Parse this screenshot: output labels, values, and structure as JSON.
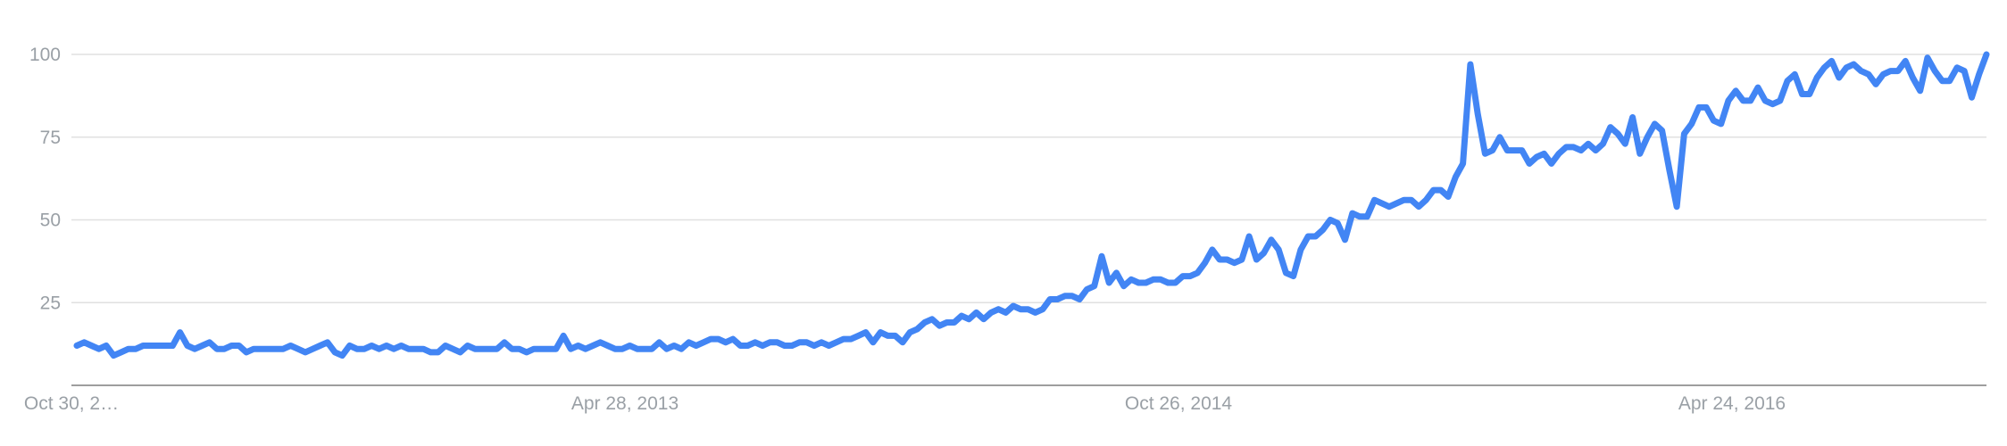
{
  "chart_data": {
    "type": "line",
    "title": "",
    "xlabel": "",
    "ylabel": "",
    "ylim": [
      0,
      100
    ],
    "grid": true,
    "legend": "none",
    "y_ticks": [
      "25",
      "50",
      "75",
      "100"
    ],
    "x_tick_labels": [
      "Oct 30, 2…",
      "Apr 28, 2013",
      "Oct 26, 2014",
      "Apr 24, 2016"
    ],
    "x_start": "2011-10-30",
    "x_end": "2016-12-31",
    "x_tick_dates": [
      "2011-10-30",
      "2013-04-28",
      "2014-10-26",
      "2016-04-24"
    ],
    "series": [
      {
        "color": "#4285f4",
        "values": [
          12,
          13,
          12,
          11,
          12,
          9,
          10,
          11,
          11,
          12,
          12,
          12,
          12,
          12,
          16,
          12,
          11,
          12,
          13,
          11,
          11,
          12,
          12,
          10,
          11,
          11,
          11,
          11,
          11,
          12,
          11,
          10,
          11,
          12,
          13,
          10,
          9,
          12,
          11,
          11,
          12,
          11,
          12,
          11,
          12,
          11,
          11,
          11,
          10,
          10,
          12,
          11,
          10,
          12,
          11,
          11,
          11,
          11,
          13,
          11,
          11,
          10,
          11,
          11,
          11,
          11,
          15,
          11,
          12,
          11,
          12,
          13,
          12,
          11,
          11,
          12,
          11,
          11,
          11,
          13,
          11,
          12,
          11,
          13,
          12,
          13,
          14,
          14,
          13,
          14,
          12,
          12,
          13,
          12,
          13,
          13,
          12,
          12,
          13,
          13,
          12,
          13,
          12,
          13,
          14,
          14,
          15,
          16,
          13,
          16,
          15,
          15,
          13,
          16,
          17,
          19,
          20,
          18,
          19,
          19,
          21,
          20,
          22,
          20,
          22,
          23,
          22,
          24,
          23,
          23,
          22,
          23,
          26,
          26,
          27,
          27,
          26,
          29,
          30,
          39,
          31,
          34,
          30,
          32,
          31,
          31,
          32,
          32,
          31,
          31,
          33,
          33,
          34,
          37,
          41,
          38,
          38,
          37,
          38,
          45,
          38,
          40,
          44,
          41,
          34,
          33,
          41,
          45,
          45,
          47,
          50,
          49,
          44,
          52,
          51,
          51,
          56,
          55,
          54,
          55,
          56,
          56,
          54,
          56,
          59,
          59,
          57,
          63,
          67,
          97,
          82,
          70,
          71,
          75,
          71,
          71,
          71,
          67,
          69,
          70,
          67,
          70,
          72,
          72,
          71,
          73,
          71,
          73,
          78,
          76,
          73,
          81,
          70,
          75,
          79,
          77,
          65,
          54,
          76,
          79,
          84,
          84,
          80,
          79,
          86,
          89,
          86,
          86,
          90,
          86,
          85,
          86,
          92,
          94,
          88,
          88,
          93,
          96,
          98,
          93,
          96,
          97,
          95,
          94,
          91,
          94,
          95,
          95,
          98,
          93,
          89,
          99,
          95,
          92,
          92,
          96,
          95,
          87,
          94,
          100
        ]
      }
    ]
  }
}
